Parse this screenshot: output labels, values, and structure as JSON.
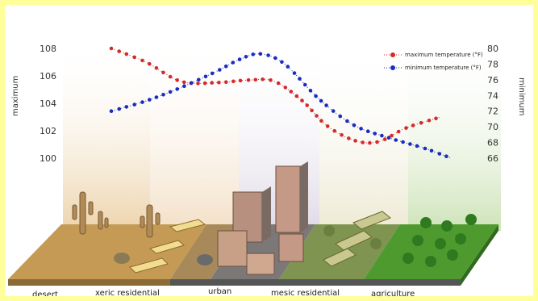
{
  "chart_data": {
    "type": "line",
    "categories": [
      "desert",
      "xeric residential",
      "urban",
      "mesic residential",
      "agriculture"
    ],
    "y_left": {
      "label": "maximum",
      "ticks": [
        "108",
        "106",
        "104",
        "102",
        "100"
      ],
      "range": [
        100,
        108
      ]
    },
    "y_right": {
      "label": "minimum",
      "ticks": [
        "80",
        "78",
        "76",
        "74",
        "72",
        "70",
        "68",
        "66"
      ],
      "range": [
        66,
        80
      ]
    },
    "x_range": [
      0,
      100
    ],
    "series": [
      {
        "name": "maximum temperature (°F)",
        "axis": "left",
        "color": "#d42a2a",
        "points": [
          [
            0,
            108
          ],
          [
            10,
            107
          ],
          [
            20,
            105.6
          ],
          [
            30,
            105.5
          ],
          [
            40,
            105.7
          ],
          [
            47,
            105.6
          ],
          [
            55,
            104.2
          ],
          [
            62,
            102.4
          ],
          [
            70,
            101.3
          ],
          [
            77,
            101.2
          ],
          [
            85,
            102.2
          ],
          [
            95,
            103.0
          ]
        ]
      },
      {
        "name": "minimum temperature (°F)",
        "axis": "right",
        "color": "#1a2cc0",
        "points": [
          [
            0,
            72
          ],
          [
            10,
            73.3
          ],
          [
            20,
            75
          ],
          [
            30,
            77
          ],
          [
            37,
            78.6
          ],
          [
            43,
            79.3
          ],
          [
            50,
            78
          ],
          [
            60,
            73.5
          ],
          [
            70,
            70.2
          ],
          [
            80,
            68.6
          ],
          [
            90,
            67.3
          ],
          [
            98,
            66
          ]
        ]
      }
    ]
  },
  "colors": {
    "frame": "#ffff99"
  }
}
